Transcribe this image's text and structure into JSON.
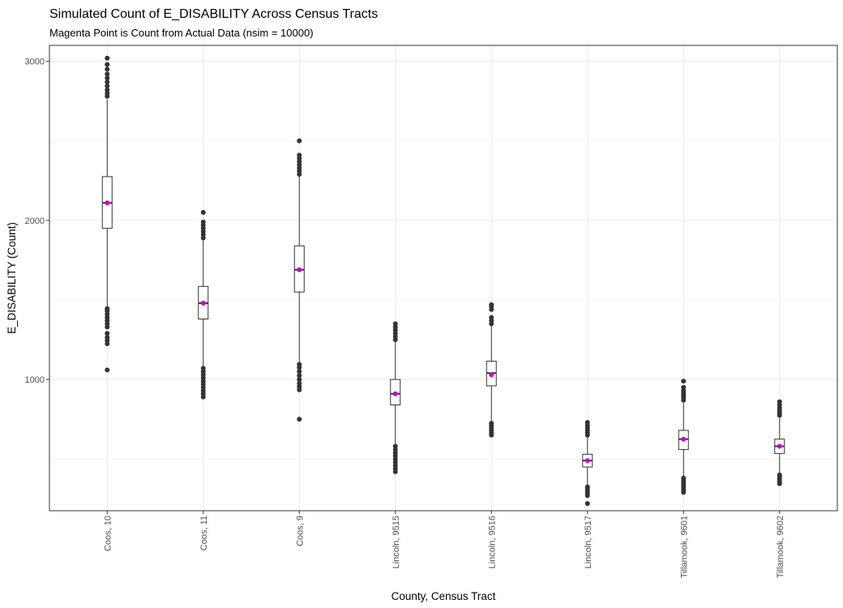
{
  "chart_data": {
    "type": "boxplot",
    "title": "Simulated Count of E_DISABILITY Across Census Tracts",
    "subtitle": "Magenta Point is Count from Actual Data (nsim = 10000)",
    "xlabel": "County, Census Tract",
    "ylabel": "E_DISABILITY (Count)",
    "ylim": [
      175,
      3100
    ],
    "yticks": [
      1000,
      2000,
      3000
    ],
    "grid": true,
    "colors": {
      "outlier": "#333333",
      "actual_point": "#cc00cc",
      "box_stroke": "#333333",
      "grid": "#ebebeb"
    },
    "categories": [
      "Coos, 10",
      "Coos, 11",
      "Coos, 9",
      "Lincoln, 9515",
      "Lincoln, 9516",
      "Lincoln, 9517",
      "Tillamook, 9601",
      "Tillamook, 9602"
    ],
    "boxes": [
      {
        "category": "Coos, 10",
        "whisker_low": 1460,
        "q1": 1950,
        "median": 2110,
        "q3": 2275,
        "whisker_high": 2760,
        "actual": 2110,
        "outliers_low": [
          1060,
          1225,
          1245,
          1265,
          1290,
          1330,
          1350,
          1370,
          1390,
          1410,
          1430,
          1445
        ],
        "outliers_high": [
          2780,
          2800,
          2820,
          2845,
          2870,
          2895,
          2920,
          2950,
          2980,
          3020
        ]
      },
      {
        "category": "Coos, 11",
        "whisker_low": 1080,
        "q1": 1380,
        "median": 1480,
        "q3": 1585,
        "whisker_high": 1880,
        "actual": 1480,
        "outliers_low": [
          890,
          910,
          930,
          950,
          970,
          990,
          1010,
          1030,
          1050,
          1070
        ],
        "outliers_high": [
          1890,
          1910,
          1930,
          1950,
          1970,
          1990,
          2050
        ]
      },
      {
        "category": "Coos, 9",
        "whisker_low": 1110,
        "q1": 1550,
        "median": 1690,
        "q3": 1840,
        "whisker_high": 2280,
        "actual": 1690,
        "outliers_low": [
          750,
          935,
          955,
          975,
          1000,
          1025,
          1050,
          1075,
          1095
        ],
        "outliers_high": [
          2290,
          2310,
          2330,
          2350,
          2370,
          2390,
          2410,
          2500
        ]
      },
      {
        "category": "Lincoln, 9515",
        "whisker_low": 590,
        "q1": 840,
        "median": 910,
        "q3": 1000,
        "whisker_high": 1240,
        "actual": 910,
        "outliers_low": [
          420,
          440,
          460,
          480,
          500,
          520,
          540,
          560,
          580
        ],
        "outliers_high": [
          1250,
          1270,
          1290,
          1310,
          1330,
          1350
        ]
      },
      {
        "category": "Lincoln, 9516",
        "whisker_low": 730,
        "q1": 960,
        "median": 1040,
        "q3": 1115,
        "whisker_high": 1340,
        "actual": 1030,
        "outliers_low": [
          650,
          665,
          680,
          695,
          710,
          725
        ],
        "outliers_high": [
          1350,
          1370,
          1390,
          1440,
          1460,
          1470
        ]
      },
      {
        "category": "Lincoln, 9517",
        "whisker_low": 330,
        "q1": 450,
        "median": 490,
        "q3": 530,
        "whisker_high": 640,
        "actual": 490,
        "outliers_low": [
          220,
          270,
          285,
          300,
          315,
          325
        ],
        "outliers_high": [
          650,
          665,
          680,
          695,
          710,
          730
        ]
      },
      {
        "category": "Tillamook, 9601",
        "whisker_low": 390,
        "q1": 560,
        "median": 625,
        "q3": 680,
        "whisker_high": 860,
        "actual": 625,
        "outliers_low": [
          290,
          305,
          320,
          335,
          350,
          365,
          380
        ],
        "outliers_high": [
          870,
          885,
          900,
          915,
          930,
          950,
          990
        ]
      },
      {
        "category": "Tillamook, 9602",
        "whisker_low": 410,
        "q1": 535,
        "median": 580,
        "q3": 625,
        "whisker_high": 765,
        "actual": 580,
        "outliers_low": [
          345,
          360,
          375,
          390,
          400
        ],
        "outliers_high": [
          775,
          790,
          805,
          820,
          840,
          860
        ]
      }
    ]
  }
}
